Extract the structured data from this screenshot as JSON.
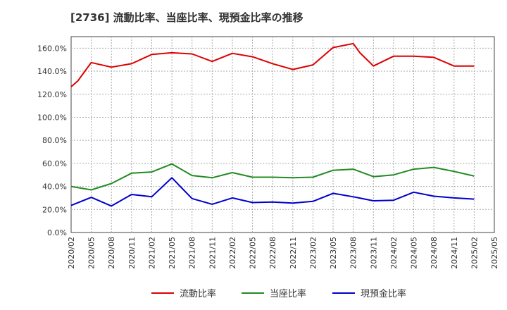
{
  "chart_data": {
    "type": "line",
    "title": "[2736]  流動比率、当座比率、現預金比率の推移",
    "xlabel": "",
    "ylabel": "",
    "ylim": [
      0,
      170
    ],
    "yticks": [
      0,
      20,
      40,
      60,
      80,
      100,
      120,
      140,
      160
    ],
    "ytick_labels": [
      "0.0%",
      "20.0%",
      "40.0%",
      "60.0%",
      "80.0%",
      "100.0%",
      "120.0%",
      "140.0%",
      "160.0%"
    ],
    "x_tick_labels": [
      "2020/02",
      "2020/05",
      "2020/08",
      "2020/11",
      "2021/02",
      "2021/05",
      "2021/08",
      "2021/11",
      "2022/02",
      "2022/05",
      "2022/08",
      "2022/11",
      "2023/02",
      "2023/05",
      "2023/08",
      "2023/11",
      "2024/02",
      "2024/05",
      "2024/08",
      "2024/11",
      "2025/02",
      "2025/05"
    ],
    "grid": true,
    "legend_position": "bottom",
    "series": [
      {
        "name": "流動比率",
        "color": "#dd0000",
        "x": [
          0,
          0.33,
          1,
          2,
          3,
          4,
          5,
          6,
          7,
          8,
          9,
          10,
          11,
          12,
          13,
          14,
          14.33,
          15,
          16,
          17,
          18,
          19,
          20
        ],
        "values": [
          126.5,
          131.5,
          147.5,
          143.5,
          146.5,
          154.5,
          156.0,
          155.0,
          148.5,
          155.5,
          152.5,
          146.5,
          141.5,
          145.5,
          160.5,
          164.0,
          156.0,
          144.5,
          153.0,
          153.0,
          152.0,
          144.5,
          144.5
        ]
      },
      {
        "name": "当座比率",
        "color": "#228b22",
        "x": [
          0,
          1,
          2,
          3,
          4,
          5,
          6,
          7,
          8,
          9,
          10,
          11,
          12,
          13,
          14,
          15,
          16,
          17,
          18,
          19,
          20
        ],
        "values": [
          40.0,
          37.0,
          42.5,
          51.5,
          52.5,
          59.5,
          49.5,
          47.5,
          52.0,
          48.0,
          48.0,
          47.5,
          48.0,
          54.0,
          55.0,
          48.5,
          50.0,
          55.0,
          56.5,
          53.0,
          49.0
        ]
      },
      {
        "name": "現預金比率",
        "color": "#0000cc",
        "x": [
          0,
          1,
          2,
          3,
          4,
          5,
          6,
          7,
          8,
          9,
          10,
          11,
          12,
          13,
          14,
          15,
          16,
          17,
          18,
          19,
          20
        ],
        "values": [
          23.5,
          30.5,
          23.0,
          33.0,
          31.0,
          47.5,
          29.5,
          24.5,
          30.0,
          26.0,
          26.5,
          25.5,
          27.0,
          34.0,
          31.0,
          27.5,
          28.0,
          35.0,
          31.5,
          30.0,
          29.0
        ]
      }
    ]
  }
}
